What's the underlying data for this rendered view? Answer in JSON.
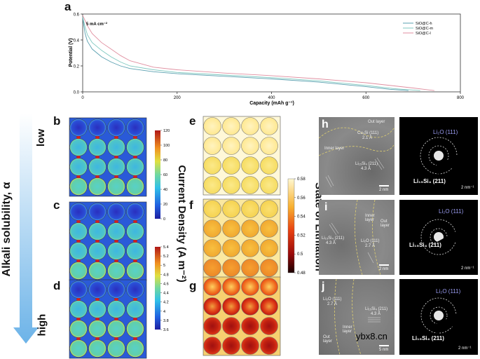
{
  "panel_labels": {
    "a": "a",
    "b": "b",
    "c": "c",
    "d": "d",
    "e": "e",
    "f": "f",
    "g": "g",
    "h": "h",
    "i": "i",
    "j": "j"
  },
  "chart_data": {
    "type": "line",
    "title": "5 mA cm⁻²",
    "xlabel": "Capacity (mAh g⁻¹)",
    "ylabel": "Potential (V)",
    "xlim": [
      0,
      800
    ],
    "ylim": [
      0.0,
      0.6
    ],
    "xticks": [
      "0",
      "200",
      "400",
      "600",
      "800"
    ],
    "yticks": [
      "0.0",
      "0.2",
      "0.4",
      "0.6"
    ],
    "legend_position": "top-right",
    "series": [
      {
        "name": "SiO@C-h",
        "color": "#5aa0b0",
        "x": [
          0,
          5,
          10,
          20,
          40,
          60,
          80,
          100,
          150,
          200,
          300,
          400,
          500,
          600,
          650,
          690
        ],
        "y": [
          0.57,
          0.45,
          0.39,
          0.33,
          0.27,
          0.23,
          0.2,
          0.18,
          0.155,
          0.14,
          0.12,
          0.1,
          0.075,
          0.04,
          0.02,
          0.01
        ]
      },
      {
        "name": "SiO@C-m",
        "color": "#7fc8c0",
        "x": [
          0,
          5,
          10,
          20,
          40,
          60,
          80,
          100,
          150,
          200,
          300,
          400,
          500,
          600,
          660,
          715
        ],
        "y": [
          0.58,
          0.5,
          0.44,
          0.38,
          0.32,
          0.27,
          0.23,
          0.2,
          0.17,
          0.15,
          0.13,
          0.11,
          0.085,
          0.05,
          0.025,
          0.01
        ]
      },
      {
        "name": "SiO@C-l",
        "color": "#e08fa0",
        "x": [
          0,
          5,
          10,
          20,
          40,
          60,
          80,
          100,
          150,
          200,
          300,
          400,
          500,
          600,
          700,
          745
        ],
        "y": [
          0.59,
          0.55,
          0.51,
          0.45,
          0.38,
          0.33,
          0.28,
          0.24,
          0.19,
          0.17,
          0.145,
          0.125,
          0.1,
          0.07,
          0.03,
          0.01
        ]
      }
    ]
  },
  "left_axis": {
    "label": "Alkali solubility, α",
    "low": "low",
    "high": "high"
  },
  "colorbar_current": {
    "ticks_top": [
      "120",
      "100",
      "80",
      "60",
      "40",
      "20",
      "0"
    ],
    "ticks_bottom": [
      "5.4",
      "5.2",
      "5",
      "4.8",
      "4.6",
      "4.4",
      "4.2",
      "4",
      "3.8",
      "3.6"
    ],
    "label": "Current Density  (A m⁻²)"
  },
  "colorbar_lithiation": {
    "ticks": [
      "0.58",
      "0.56",
      "0.54",
      "0.52",
      "0.5",
      "0.48"
    ],
    "range": [
      0.48,
      0.58
    ],
    "label": "State of Lithiation"
  },
  "tem_h": {
    "out_layer": "Out layer",
    "inner_layer": "Inner layer",
    "cu": "Cu₃Si (111)",
    "cu_d": "2.1 Å",
    "li": "Li₁₅Si₄ (211)",
    "li_d": "4.3 Å",
    "scale": "2 nm"
  },
  "tem_i": {
    "out_layer": "Out layer",
    "inner_layer": "Inner layer",
    "li": "Li₁₅Si₄ (211)",
    "li_d": "4.3 Å",
    "li2o": "Li₂O (111)",
    "li2o_d": "2.7 Å",
    "scale": "2 nm"
  },
  "tem_j": {
    "out_layer": "Out layer",
    "inner_layer": "Inner layer",
    "li2o": "Li₂O (111)",
    "li2o_d": "2.7 Å",
    "li": "Li₁₅Si₄ (211)",
    "li_d": "4.3 Å",
    "scale": "5 nm"
  },
  "saed": {
    "li2o": "Li₂O (111)",
    "li15": "Li₁₅Si₄ (211)",
    "scale": "2 nm⁻¹"
  },
  "watermark": "ybx8.cn"
}
